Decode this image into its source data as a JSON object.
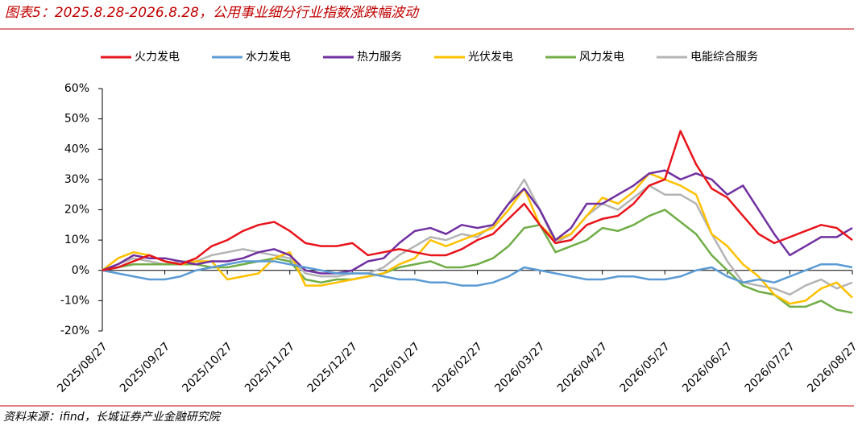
{
  "chart_data": {
    "type": "line",
    "title": "图表5：2025.8.28-2026.8.28，公用事业细分行业指数涨跌幅波动",
    "source": "资料来源：ifind，长城证券产业金融研究院",
    "categories": [
      "2025/08/27",
      null,
      null,
      null,
      "2025/09/27",
      null,
      null,
      null,
      "2025/10/27",
      null,
      null,
      null,
      "2025/11/27",
      null,
      null,
      null,
      "2025/12/27",
      null,
      null,
      null,
      "2026/01/27",
      null,
      null,
      null,
      "2026/02/27",
      null,
      null,
      null,
      "2026/03/27",
      null,
      null,
      null,
      "2026/04/27",
      null,
      null,
      null,
      "2026/05/27",
      null,
      null,
      null,
      "2026/06/27",
      null,
      null,
      null,
      "2026/07/27",
      null,
      null,
      null,
      "2026/08/27"
    ],
    "series": [
      {
        "name": "火力发电",
        "color": "#e8141b",
        "values": [
          0,
          1,
          3,
          5,
          3,
          2,
          4,
          8,
          10,
          13,
          15,
          16,
          13,
          9,
          8,
          8,
          9,
          5,
          6,
          7,
          6,
          5,
          5,
          7,
          10,
          12,
          17,
          22,
          15,
          9,
          10,
          15,
          17,
          18,
          22,
          28,
          30,
          46,
          35,
          27,
          24,
          18,
          12,
          9,
          11,
          13,
          15,
          14,
          10
        ]
      },
      {
        "name": "水力发电",
        "color": "#5b9bd5",
        "values": [
          0,
          -1,
          -2,
          -3,
          -3,
          -2,
          0,
          1,
          2,
          3,
          3,
          3,
          2,
          1,
          0,
          -1,
          -1,
          -1,
          -2,
          -3,
          -3,
          -4,
          -4,
          -5,
          -5,
          -4,
          -2,
          1,
          0,
          -1,
          -2,
          -3,
          -3,
          -2,
          -2,
          -3,
          -3,
          -2,
          0,
          1,
          -2,
          -4,
          -3,
          -4,
          -2,
          0,
          2,
          2,
          1
        ]
      },
      {
        "name": "热力服务",
        "color": "#7030a0",
        "values": [
          0,
          2,
          5,
          4,
          4,
          3,
          2,
          3,
          3,
          4,
          6,
          7,
          5,
          0,
          -1,
          -1,
          0,
          3,
          4,
          9,
          13,
          14,
          12,
          15,
          14,
          15,
          22,
          27,
          20,
          10,
          14,
          22,
          22,
          25,
          28,
          32,
          33,
          30,
          32,
          30,
          25,
          28,
          20,
          12,
          5,
          8,
          11,
          11,
          14
        ]
      },
      {
        "name": "光伏发电",
        "color": "#ffc000",
        "values": [
          0,
          4,
          6,
          5,
          3,
          2,
          3,
          3,
          -3,
          -2,
          -1,
          4,
          6,
          -5,
          -5,
          -4,
          -3,
          -2,
          -1,
          2,
          4,
          10,
          8,
          10,
          12,
          14,
          20,
          27,
          15,
          10,
          12,
          18,
          24,
          22,
          26,
          32,
          30,
          28,
          25,
          12,
          8,
          2,
          -2,
          -8,
          -11,
          -10,
          -6,
          -4,
          -9
        ]
      },
      {
        "name": "风力发电",
        "color": "#70ad47",
        "values": [
          0,
          1,
          2,
          2,
          2,
          2,
          2,
          1,
          1,
          2,
          3,
          4,
          3,
          -3,
          -4,
          -3,
          -3,
          -2,
          -1,
          1,
          2,
          3,
          1,
          1,
          2,
          4,
          8,
          14,
          15,
          6,
          8,
          10,
          14,
          13,
          15,
          18,
          20,
          16,
          12,
          5,
          0,
          -5,
          -7,
          -8,
          -12,
          -12,
          -10,
          -13,
          -14
        ]
      },
      {
        "name": "电能综合服务",
        "color": "#b4b4b4",
        "values": [
          0,
          2,
          4,
          3,
          2,
          3,
          3,
          5,
          6,
          7,
          6,
          5,
          4,
          -1,
          -2,
          -2,
          -1,
          -1,
          1,
          5,
          8,
          11,
          10,
          12,
          11,
          15,
          22,
          30,
          20,
          9,
          12,
          18,
          22,
          20,
          24,
          28,
          25,
          25,
          22,
          12,
          3,
          -4,
          -5,
          -6,
          -8,
          -5,
          -3,
          -6,
          -4
        ]
      }
    ],
    "ylim": [
      -20,
      60
    ],
    "yticks": [
      {
        "value": -20,
        "label": "-20%"
      },
      {
        "value": -10,
        "label": "-10%"
      },
      {
        "value": 0,
        "label": "0%"
      },
      {
        "value": 10,
        "label": "10%"
      },
      {
        "value": 20,
        "label": "20%"
      },
      {
        "value": 30,
        "label": "30%"
      },
      {
        "value": 40,
        "label": "40%"
      },
      {
        "value": 50,
        "label": "50%"
      },
      {
        "value": 60,
        "label": "60%"
      }
    ]
  }
}
